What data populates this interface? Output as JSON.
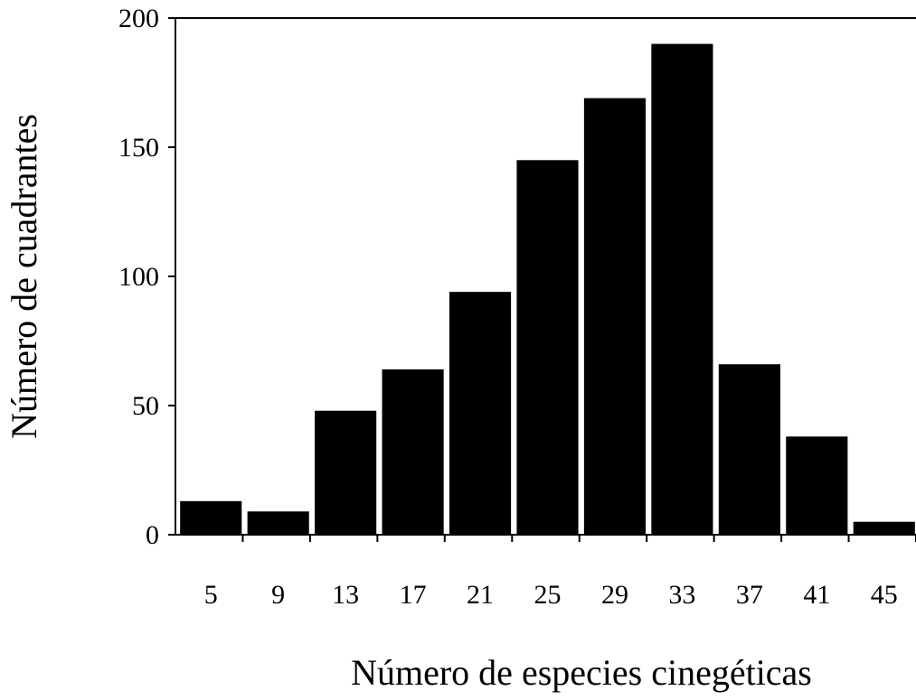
{
  "chart_data": {
    "type": "bar",
    "title": "",
    "xlabel": "Número de especies cinegéticas",
    "ylabel": "Número de cuadrantes",
    "categories": [
      "5",
      "9",
      "13",
      "17",
      "21",
      "25",
      "29",
      "33",
      "37",
      "41",
      "45"
    ],
    "values": [
      13,
      9,
      48,
      64,
      94,
      145,
      169,
      190,
      66,
      38,
      5
    ],
    "ylim": [
      0,
      200
    ],
    "yticks": [
      "0",
      "50",
      "100",
      "150",
      "200"
    ],
    "grid": false,
    "legend": "none",
    "colors": {
      "bar": "#000000",
      "axis": "#000000",
      "background": "#ffffff"
    }
  }
}
